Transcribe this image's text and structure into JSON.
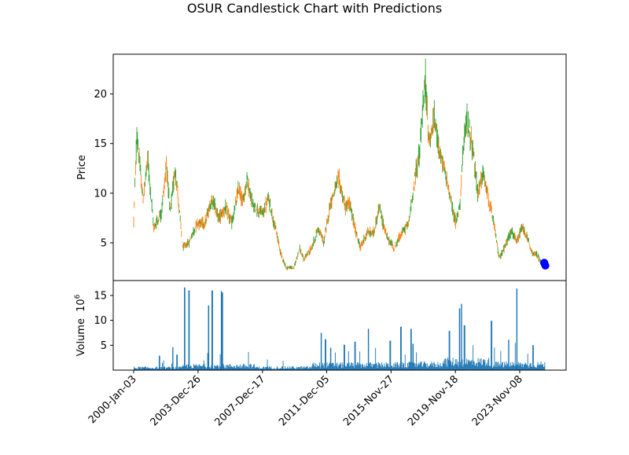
{
  "chart_data": [
    {
      "type": "candlestick",
      "title": "OSUR Candlestick Chart with Predictions",
      "ylabel": "Price",
      "ylim": [
        1.2,
        24.0
      ],
      "yticks": [
        5,
        10,
        15,
        20
      ],
      "x_date_range": [
        "2000-01-03",
        "2025-05-30"
      ],
      "up_color": "#2ca02c",
      "down_color": "#ff7f0e",
      "prediction_color": "#0000ff",
      "price_anchors": [
        [
          "2000-01-03",
          7.2
        ],
        [
          "2000-03-15",
          16.0
        ],
        [
          "2000-08-01",
          9.2
        ],
        [
          "2000-11-15",
          13.5
        ],
        [
          "2001-04-01",
          6.5
        ],
        [
          "2001-09-15",
          8.0
        ],
        [
          "2002-01-15",
          13.0
        ],
        [
          "2002-04-01",
          8.0
        ],
        [
          "2002-08-01",
          12.5
        ],
        [
          "2003-01-15",
          4.5
        ],
        [
          "2003-06-01",
          5.0
        ],
        [
          "2003-12-01",
          7.0
        ],
        [
          "2004-06-01",
          7.0
        ],
        [
          "2004-11-15",
          9.5
        ],
        [
          "2005-04-01",
          7.5
        ],
        [
          "2005-09-01",
          8.5
        ],
        [
          "2006-02-01",
          7.0
        ],
        [
          "2006-07-01",
          10.5
        ],
        [
          "2006-10-01",
          9.0
        ],
        [
          "2007-01-01",
          11.5
        ],
        [
          "2007-06-01",
          8.5
        ],
        [
          "2008-01-01",
          8.0
        ],
        [
          "2008-05-01",
          9.5
        ],
        [
          "2008-10-01",
          6.5
        ],
        [
          "2009-02-01",
          4.0
        ],
        [
          "2009-06-01",
          2.5
        ],
        [
          "2009-12-01",
          2.5
        ],
        [
          "2010-04-01",
          4.5
        ],
        [
          "2010-07-01",
          3.3
        ],
        [
          "2011-01-01",
          4.5
        ],
        [
          "2011-06-01",
          6.5
        ],
        [
          "2011-10-01",
          5.0
        ],
        [
          "2012-03-01",
          9.0
        ],
        [
          "2012-09-01",
          11.5
        ],
        [
          "2013-02-01",
          8.5
        ],
        [
          "2013-05-01",
          9.0
        ],
        [
          "2013-09-01",
          6.5
        ],
        [
          "2014-01-01",
          4.5
        ],
        [
          "2014-06-01",
          6.0
        ],
        [
          "2014-11-01",
          6.0
        ],
        [
          "2015-03-01",
          8.5
        ],
        [
          "2015-05-01",
          7.5
        ],
        [
          "2015-09-01",
          5.5
        ],
        [
          "2016-02-01",
          4.5
        ],
        [
          "2016-08-01",
          6.0
        ],
        [
          "2017-01-01",
          7.0
        ],
        [
          "2017-06-01",
          12.0
        ],
        [
          "2017-09-01",
          14.0
        ],
        [
          "2017-11-01",
          18.0
        ],
        [
          "2018-01-15",
          21.5
        ],
        [
          "2018-04-01",
          15.0
        ],
        [
          "2018-08-01",
          17.5
        ],
        [
          "2019-01-01",
          13.5
        ],
        [
          "2019-05-01",
          11.5
        ],
        [
          "2019-10-01",
          8.0
        ],
        [
          "2019-12-01",
          7.0
        ],
        [
          "2020-03-01",
          9.0
        ],
        [
          "2020-05-01",
          14.0
        ],
        [
          "2020-08-01",
          17.5
        ],
        [
          "2020-12-01",
          15.0
        ],
        [
          "2021-04-01",
          10.0
        ],
        [
          "2021-08-01",
          12.0
        ],
        [
          "2021-12-01",
          9.5
        ],
        [
          "2022-04-01",
          7.0
        ],
        [
          "2022-08-01",
          3.5
        ],
        [
          "2022-12-01",
          4.5
        ],
        [
          "2023-04-01",
          6.0
        ],
        [
          "2023-06-01",
          6.0
        ],
        [
          "2023-09-01",
          5.0
        ],
        [
          "2024-01-01",
          6.5
        ],
        [
          "2024-05-01",
          5.5
        ],
        [
          "2024-08-01",
          4.0
        ],
        [
          "2024-12-01",
          3.8
        ],
        [
          "2025-03-01",
          3.0
        ],
        [
          "2025-05-30",
          2.8
        ]
      ],
      "predictions": [
        [
          "2025-05-15",
          3.0
        ],
        [
          "2025-05-25",
          2.85
        ],
        [
          "2025-06-10",
          2.7
        ]
      ]
    },
    {
      "type": "bar",
      "ylabel": "Volume",
      "yscale_label": "10",
      "yscale_exp": "6",
      "ylim": [
        0,
        18.0
      ],
      "yticks": [
        5,
        10,
        15
      ],
      "color": "#1f77b4",
      "xticks": [
        "2000-Jan-03",
        "2003-Dec-26",
        "2007-Dec-17",
        "2011-Dec-05",
        "2015-Nov-27",
        "2019-Nov-18",
        "2023-Nov-08"
      ],
      "xtick_dates": [
        "2000-01-03",
        "2003-12-26",
        "2007-12-17",
        "2011-12-05",
        "2015-11-27",
        "2019-11-18",
        "2023-11-08"
      ],
      "volume_spikes": [
        [
          "2001-08-01",
          2.9
        ],
        [
          "2002-06-01",
          4.6
        ],
        [
          "2002-09-01",
          3.1
        ],
        [
          "2003-02-20",
          16.6
        ],
        [
          "2003-06-01",
          16.0
        ],
        [
          "2004-08-15",
          13.0
        ],
        [
          "2004-11-01",
          16.0
        ],
        [
          "2005-06-01",
          15.9
        ],
        [
          "2005-06-20",
          15.6
        ],
        [
          "2011-08-01",
          7.5
        ],
        [
          "2011-11-01",
          6.2
        ],
        [
          "2012-03-01",
          4.5
        ],
        [
          "2013-01-01",
          5.1
        ],
        [
          "2013-09-01",
          5.7
        ],
        [
          "2014-07-01",
          8.3
        ],
        [
          "2015-11-01",
          5.9
        ],
        [
          "2016-07-01",
          8.7
        ],
        [
          "2017-02-15",
          8.3
        ],
        [
          "2017-04-01",
          5.3
        ],
        [
          "2019-07-01",
          7.9
        ],
        [
          "2020-02-15",
          12.4
        ],
        [
          "2020-04-01",
          13.3
        ],
        [
          "2020-06-01",
          9.0
        ],
        [
          "2022-02-01",
          9.9
        ],
        [
          "2023-03-01",
          6.1
        ],
        [
          "2023-09-01",
          16.4
        ],
        [
          "2024-09-01",
          5.0
        ]
      ]
    }
  ]
}
